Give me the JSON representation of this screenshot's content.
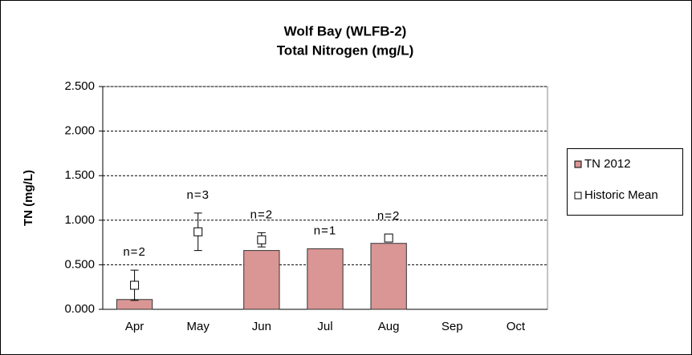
{
  "chart_data": {
    "type": "bar",
    "title": [
      "Wolf Bay (WLFB-2)",
      "Total Nitrogen (mg/L)"
    ],
    "y_label": "TN (mg/L)",
    "categories": [
      "Apr",
      "May",
      "Jun",
      "Jul",
      "Aug",
      "Sep",
      "Oct"
    ],
    "series": [
      {
        "name": "TN 2012",
        "color": "#d99694",
        "kind": "bar",
        "values": [
          0.11,
          null,
          0.66,
          0.68,
          0.74,
          null,
          null
        ]
      },
      {
        "name": "Historic Mean",
        "color": "#ffffff",
        "kind": "marker",
        "values": [
          0.27,
          0.87,
          0.78,
          null,
          0.8,
          null,
          null
        ],
        "errors": [
          0.17,
          0.21,
          0.08,
          null,
          null,
          null,
          null
        ]
      }
    ],
    "annotations": [
      "n=2",
      "n=3",
      "n=2",
      "n=1",
      "n=2",
      null,
      null
    ],
    "ylim": [
      0,
      2.5
    ],
    "yticks": [
      {
        "value": 0,
        "label": "0.000"
      },
      {
        "value": 0.5,
        "label": "0.500"
      },
      {
        "value": 1,
        "label": "1.000"
      },
      {
        "value": 1.5,
        "label": "1.500"
      },
      {
        "value": 2,
        "label": "2.000"
      },
      {
        "value": 2.5,
        "label": "2.500"
      }
    ],
    "grid": true,
    "legend": "right"
  }
}
